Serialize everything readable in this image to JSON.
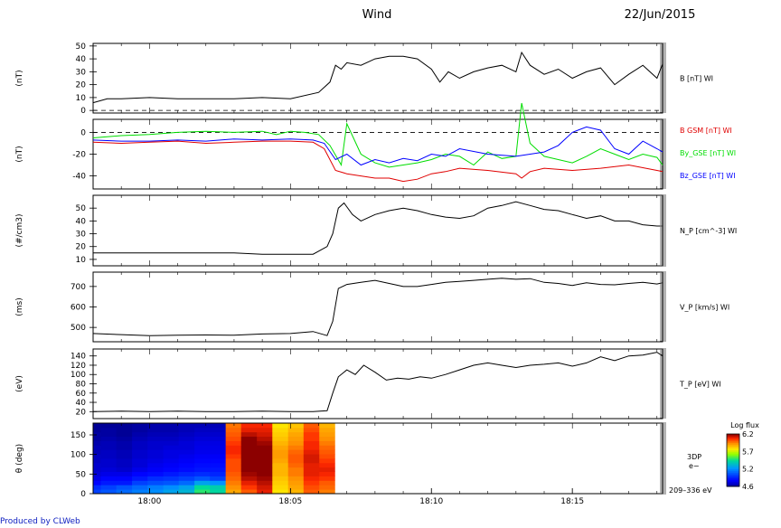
{
  "header": {
    "mission": "Wind",
    "date": "22/Jun/2015"
  },
  "footer": {
    "credit": "Produced by CLWeb"
  },
  "chart_data": [
    {
      "type": "line",
      "panel": "b_total",
      "ylabel": "(nT)",
      "ylim": [
        -2,
        52
      ],
      "yticks": [
        0,
        10,
        20,
        30,
        40,
        50
      ],
      "reference_line": 0,
      "x_range": [
        0,
        20.2
      ],
      "series": [
        {
          "name": "B [nT] WI",
          "color": "#000000",
          "x": [
            0,
            0.5,
            1,
            2,
            3,
            4,
            5,
            6,
            7,
            8,
            8.4,
            8.6,
            8.8,
            9.0,
            9.5,
            10,
            10.5,
            11,
            11.5,
            12,
            12.3,
            12.6,
            13,
            13.5,
            14,
            14.5,
            15,
            15.2,
            15.5,
            16,
            16.5,
            17,
            17.5,
            18,
            18.5,
            19,
            19.5,
            20,
            20.2
          ],
          "y": [
            6,
            9,
            9,
            10,
            9,
            9,
            9,
            10,
            9,
            14,
            22,
            35,
            32,
            37,
            35,
            40,
            42,
            42,
            40,
            32,
            22,
            30,
            25,
            30,
            33,
            35,
            30,
            45,
            35,
            28,
            32,
            25,
            30,
            33,
            20,
            28,
            35,
            25,
            36
          ]
        }
      ]
    },
    {
      "type": "line",
      "panel": "b_components",
      "ylabel": "(nT)",
      "ylim": [
        -52,
        12
      ],
      "yticks": [
        -40,
        -20,
        0
      ],
      "reference_line": 0,
      "x_range": [
        0,
        20.2
      ],
      "series": [
        {
          "name": "B GSM [nT] WI",
          "color": "#e00000",
          "x": [
            0,
            1,
            2,
            3,
            4,
            5,
            6,
            7,
            7.8,
            8.2,
            8.6,
            9.0,
            9.5,
            10,
            10.5,
            11,
            11.5,
            12,
            12.5,
            13,
            14,
            15,
            15.2,
            15.5,
            16,
            17,
            18,
            19,
            20,
            20.2
          ],
          "y": [
            -9,
            -10,
            -9,
            -8,
            -10,
            -9,
            -8,
            -8,
            -9,
            -15,
            -35,
            -38,
            -40,
            -42,
            -42,
            -45,
            -43,
            -38,
            -36,
            -33,
            -35,
            -38,
            -42,
            -36,
            -33,
            -35,
            -33,
            -30,
            -35,
            -36
          ]
        },
        {
          "name": "By_GSE [nT] WI",
          "color": "#00dd00",
          "x": [
            0,
            1,
            2,
            3,
            4,
            5,
            6,
            6.5,
            7,
            7.5,
            8,
            8.4,
            8.8,
            9.0,
            9.5,
            10,
            10.5,
            11,
            11.5,
            12,
            12.5,
            13,
            13.5,
            14,
            14.5,
            15,
            15.2,
            15.5,
            16,
            16.5,
            17,
            17.5,
            18,
            18.5,
            19,
            19.5,
            20,
            20.2
          ],
          "y": [
            -5,
            -3,
            -2,
            0,
            1,
            0,
            1,
            -2,
            1,
            0,
            -2,
            -12,
            -30,
            8,
            -20,
            -28,
            -32,
            -30,
            -28,
            -25,
            -20,
            -22,
            -30,
            -18,
            -24,
            -22,
            27,
            -10,
            -22,
            -25,
            -28,
            -22,
            -15,
            -20,
            -25,
            -20,
            -23,
            -30
          ]
        },
        {
          "name": "Bz_GSE [nT] WI",
          "color": "#0000ff",
          "x": [
            0,
            1,
            2,
            3,
            4,
            5,
            6,
            7,
            7.8,
            8.2,
            8.6,
            9.0,
            9.5,
            10,
            10.5,
            11,
            11.5,
            12,
            12.5,
            13,
            14,
            15,
            15.5,
            16,
            16.5,
            17,
            17.5,
            18,
            18.5,
            19,
            19.5,
            20,
            20.2
          ],
          "y": [
            -7,
            -8,
            -8,
            -7,
            -8,
            -6,
            -7,
            -6,
            -7,
            -10,
            -25,
            -20,
            -30,
            -25,
            -28,
            -24,
            -26,
            -20,
            -22,
            -15,
            -20,
            -22,
            -20,
            -18,
            -12,
            0,
            5,
            2,
            -15,
            -20,
            -8,
            -15,
            -18
          ]
        }
      ]
    },
    {
      "type": "line",
      "panel": "density",
      "ylabel": "(#/cm3)",
      "ylim": [
        5,
        60
      ],
      "yticks": [
        10,
        20,
        30,
        40,
        50
      ],
      "x_range": [
        0,
        20.2
      ],
      "series": [
        {
          "name": "N_P [cm^-3] WI",
          "color": "#000000",
          "x": [
            0,
            1,
            2,
            3,
            4,
            5,
            6,
            7,
            7.8,
            8.3,
            8.5,
            8.7,
            8.9,
            9.2,
            9.5,
            10,
            10.5,
            11,
            11.5,
            12,
            12.5,
            13,
            13.5,
            14,
            14.5,
            15,
            15.5,
            16,
            16.5,
            17,
            17.5,
            18,
            18.5,
            19,
            19.5,
            20,
            20.2
          ],
          "y": [
            15,
            15,
            15,
            15,
            15,
            15,
            14,
            14,
            14,
            20,
            30,
            50,
            54,
            45,
            40,
            45,
            48,
            50,
            48,
            45,
            43,
            42,
            44,
            50,
            52,
            55,
            52,
            49,
            48,
            45,
            42,
            44,
            40,
            40,
            37,
            36,
            36
          ]
        }
      ]
    },
    {
      "type": "line",
      "panel": "velocity",
      "ylabel": "(ms)",
      "ylim": [
        430,
        770
      ],
      "yticks": [
        500,
        600,
        700
      ],
      "x_range": [
        0,
        20.2
      ],
      "series": [
        {
          "name": "V_P [km/s] WI",
          "color": "#000000",
          "x": [
            0,
            1,
            2,
            3,
            4,
            5,
            6,
            7,
            7.8,
            8.3,
            8.5,
            8.7,
            9.0,
            9.5,
            10,
            10.5,
            11,
            11.5,
            12,
            12.5,
            13,
            13.5,
            14,
            14.5,
            15,
            15.5,
            16,
            16.5,
            17,
            17.5,
            18,
            18.5,
            19,
            19.5,
            20,
            20.2
          ],
          "y": [
            470,
            465,
            460,
            462,
            463,
            462,
            468,
            470,
            480,
            460,
            530,
            690,
            710,
            720,
            730,
            715,
            700,
            700,
            710,
            720,
            725,
            730,
            735,
            740,
            735,
            738,
            720,
            715,
            705,
            718,
            710,
            708,
            715,
            720,
            712,
            718
          ]
        }
      ]
    },
    {
      "type": "line",
      "panel": "temperature",
      "ylabel": "(eV)",
      "ylim": [
        5,
        155
      ],
      "yticks": [
        20,
        40,
        60,
        80,
        100,
        120,
        140
      ],
      "x_range": [
        0,
        20.2
      ],
      "series": [
        {
          "name": "T_P [eV] WI",
          "color": "#000000",
          "x": [
            0,
            1,
            2,
            3,
            4,
            5,
            6,
            7,
            7.8,
            8.3,
            8.5,
            8.7,
            9.0,
            9.3,
            9.6,
            10,
            10.4,
            10.8,
            11.2,
            11.6,
            12,
            12.5,
            13,
            13.5,
            14,
            14.5,
            15,
            15.5,
            16,
            16.5,
            17,
            17.5,
            18,
            18.5,
            19,
            19.5,
            20,
            20.2
          ],
          "y": [
            20,
            21,
            20,
            21,
            20,
            20,
            21,
            20,
            20,
            22,
            60,
            95,
            110,
            100,
            120,
            105,
            88,
            92,
            90,
            95,
            92,
            100,
            110,
            120,
            125,
            120,
            115,
            120,
            122,
            125,
            118,
            125,
            138,
            130,
            140,
            142,
            148,
            140
          ]
        }
      ]
    },
    {
      "type": "heatmap",
      "panel": "electron_spectrogram",
      "ylabel": "θ (deg)",
      "ylim": [
        0,
        180
      ],
      "yticks": [
        0,
        50,
        100,
        150
      ],
      "x_range": [
        0,
        20.2
      ],
      "xticks": [
        {
          "t": 2.0,
          "label": "18:00"
        },
        {
          "t": 7.0,
          "label": "18:05"
        },
        {
          "t": 12.0,
          "label": "18:10"
        },
        {
          "t": 17.0,
          "label": "18:15"
        }
      ],
      "colorbar": {
        "title": "Log flux",
        "min": 4.6,
        "max": 6.2,
        "ticks": [
          "6.2",
          "5.7",
          "5.2",
          "4.6"
        ]
      },
      "instrument_label": "3DP e−",
      "energy_label": "209–336 eV",
      "time_bins": [
        0,
        2.5,
        7.5,
        12.6,
        17.6,
        22.7,
        27.7,
        32.8,
        37.8,
        42.9,
        47.9,
        53,
        58,
        63.1,
        68.1,
        73.2,
        78.2,
        83.3,
        88.3,
        93.4,
        98.4,
        103.5,
        108.5,
        113.6,
        118.6,
        123.7,
        128.7,
        133.8,
        138.8,
        143.9,
        148.9,
        154,
        159,
        164.1,
        169.1,
        174.2,
        179.2,
        184.3
      ],
      "angle_bins": [
        0,
        11.25,
        22.5,
        33.75,
        45,
        56.25,
        67.5,
        78.75,
        90,
        101.25,
        112.5,
        123.75,
        135,
        146.25,
        157.5,
        168.75,
        180
      ],
      "values": [
        [
          4.95,
          5.0,
          5.05,
          5.1,
          5.14,
          5.2,
          5.26,
          5.45,
          5.38,
          5.88,
          6.0,
          6.1,
          5.75,
          5.85,
          6.0,
          5.95
        ],
        [
          4.9,
          4.95,
          5.0,
          5.05,
          5.1,
          5.14,
          5.2,
          5.4,
          5.35,
          5.92,
          6.05,
          6.12,
          5.78,
          5.88,
          6.02,
          5.98
        ],
        [
          4.8,
          4.85,
          4.85,
          4.95,
          4.98,
          5.0,
          5.05,
          5.2,
          5.15,
          5.95,
          6.1,
          6.15,
          5.8,
          5.9,
          6.05,
          6.0
        ],
        [
          4.75,
          4.8,
          4.8,
          4.85,
          4.9,
          4.92,
          4.95,
          5.0,
          4.95,
          5.98,
          6.15,
          6.18,
          5.82,
          5.92,
          6.08,
          6.05
        ],
        [
          4.72,
          4.75,
          4.75,
          4.8,
          4.82,
          4.85,
          4.88,
          4.9,
          4.88,
          6.0,
          6.18,
          6.2,
          5.85,
          5.95,
          6.1,
          6.08
        ],
        [
          4.7,
          4.72,
          4.7,
          4.75,
          4.78,
          4.8,
          4.82,
          4.84,
          4.84,
          6.02,
          6.2,
          6.2,
          5.85,
          5.95,
          6.1,
          6.1
        ],
        [
          4.7,
          4.7,
          4.68,
          4.72,
          4.76,
          4.78,
          4.8,
          4.82,
          4.82,
          6.02,
          6.22,
          6.2,
          5.85,
          5.98,
          6.1,
          6.08
        ],
        [
          4.68,
          4.7,
          4.68,
          4.72,
          4.74,
          4.76,
          4.78,
          4.8,
          4.8,
          6.02,
          6.25,
          6.2,
          5.88,
          6.0,
          6.12,
          6.05
        ],
        [
          4.68,
          4.68,
          4.66,
          4.7,
          4.72,
          4.74,
          4.76,
          4.78,
          4.78,
          6.05,
          6.3,
          6.22,
          5.9,
          6.0,
          6.12,
          6.02
        ],
        [
          4.66,
          4.68,
          4.66,
          4.7,
          4.72,
          4.74,
          4.74,
          4.76,
          4.76,
          6.08,
          6.32,
          6.22,
          5.9,
          5.98,
          6.1,
          6.0
        ],
        [
          4.66,
          4.66,
          4.64,
          4.68,
          4.7,
          4.72,
          4.72,
          4.75,
          4.75,
          6.08,
          6.3,
          6.2,
          5.88,
          5.95,
          6.08,
          5.98
        ],
        [
          4.64,
          4.66,
          4.64,
          4.68,
          4.7,
          4.7,
          4.72,
          4.74,
          4.74,
          6.05,
          6.25,
          6.18,
          5.85,
          5.92,
          6.08,
          5.95
        ],
        [
          4.62,
          4.64,
          4.62,
          4.66,
          4.68,
          4.68,
          4.7,
          4.72,
          4.72,
          6.02,
          6.2,
          6.15,
          5.82,
          5.9,
          6.05,
          5.92
        ],
        [
          4.62,
          4.62,
          4.6,
          4.64,
          4.66,
          4.66,
          4.68,
          4.7,
          4.7,
          6.0,
          6.15,
          6.12,
          5.8,
          5.88,
          6.05,
          5.9
        ],
        [
          4.6,
          4.62,
          4.6,
          4.62,
          4.64,
          4.64,
          4.66,
          4.68,
          4.68,
          5.98,
          6.1,
          6.1,
          5.78,
          5.85,
          6.02,
          5.88
        ],
        [
          4.6,
          4.6,
          4.6,
          4.62,
          4.64,
          4.64,
          4.66,
          4.66,
          4.66,
          5.96,
          6.08,
          6.08,
          5.75,
          5.82,
          6.0,
          5.85
        ]
      ]
    }
  ]
}
